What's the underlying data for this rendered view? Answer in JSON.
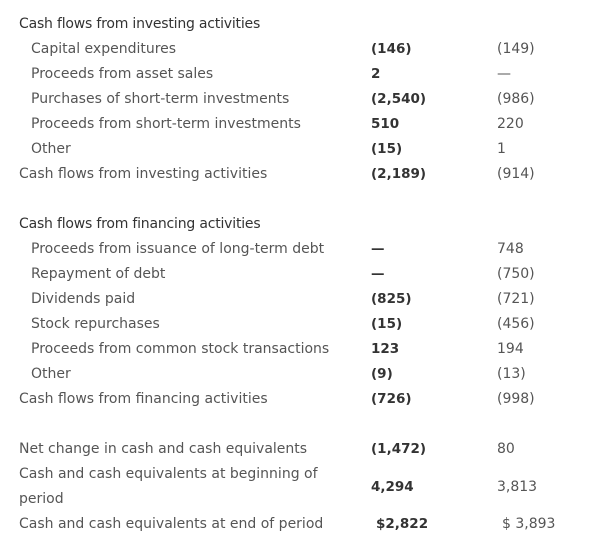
{
  "sections": [
    {
      "title": "Cash flows from investing activities",
      "items": [
        {
          "label": "Capital expenditures",
          "current": "(146)",
          "prior": "(149)"
        },
        {
          "label": "Proceeds from asset sales",
          "current": "2",
          "prior": "—"
        },
        {
          "label": "Purchases of short-term investments",
          "current": "(2,540)",
          "prior": "(986)"
        },
        {
          "label": "Proceeds from short-term investments",
          "current": "510",
          "prior": "220"
        },
        {
          "label": "Other",
          "current": "(15)",
          "prior": "1"
        }
      ],
      "total": {
        "label": "Cash flows from investing activities",
        "current": "(2,189)",
        "prior": "(914)"
      }
    },
    {
      "title": "Cash flows from financing activities",
      "items": [
        {
          "label": "Proceeds from issuance of long-term debt",
          "current": "—",
          "prior": "748"
        },
        {
          "label": "Repayment of debt",
          "current": "—",
          "prior": "(750)"
        },
        {
          "label": "Dividends paid",
          "current": "(825)",
          "prior": "(721)"
        },
        {
          "label": "Stock repurchases",
          "current": "(15)",
          "prior": "(456)"
        },
        {
          "label": "Proceeds from common stock transactions",
          "current": "123",
          "prior": "194"
        },
        {
          "label": "Other",
          "current": "(9)",
          "prior": "(13)"
        }
      ],
      "total": {
        "label": "Cash flows from financing activities",
        "current": "(726)",
        "prior": "(998)"
      }
    }
  ],
  "summary": [
    {
      "label": "Net change in cash and cash equivalents",
      "current": "(1,472)",
      "prior": "80"
    },
    {
      "label": "Cash and cash equivalents at beginning of period",
      "current": "4,294",
      "prior": "3,813"
    },
    {
      "label": "Cash and cash equivalents at end of period",
      "current": "$2,822",
      "prior": "$ 3,893"
    }
  ]
}
